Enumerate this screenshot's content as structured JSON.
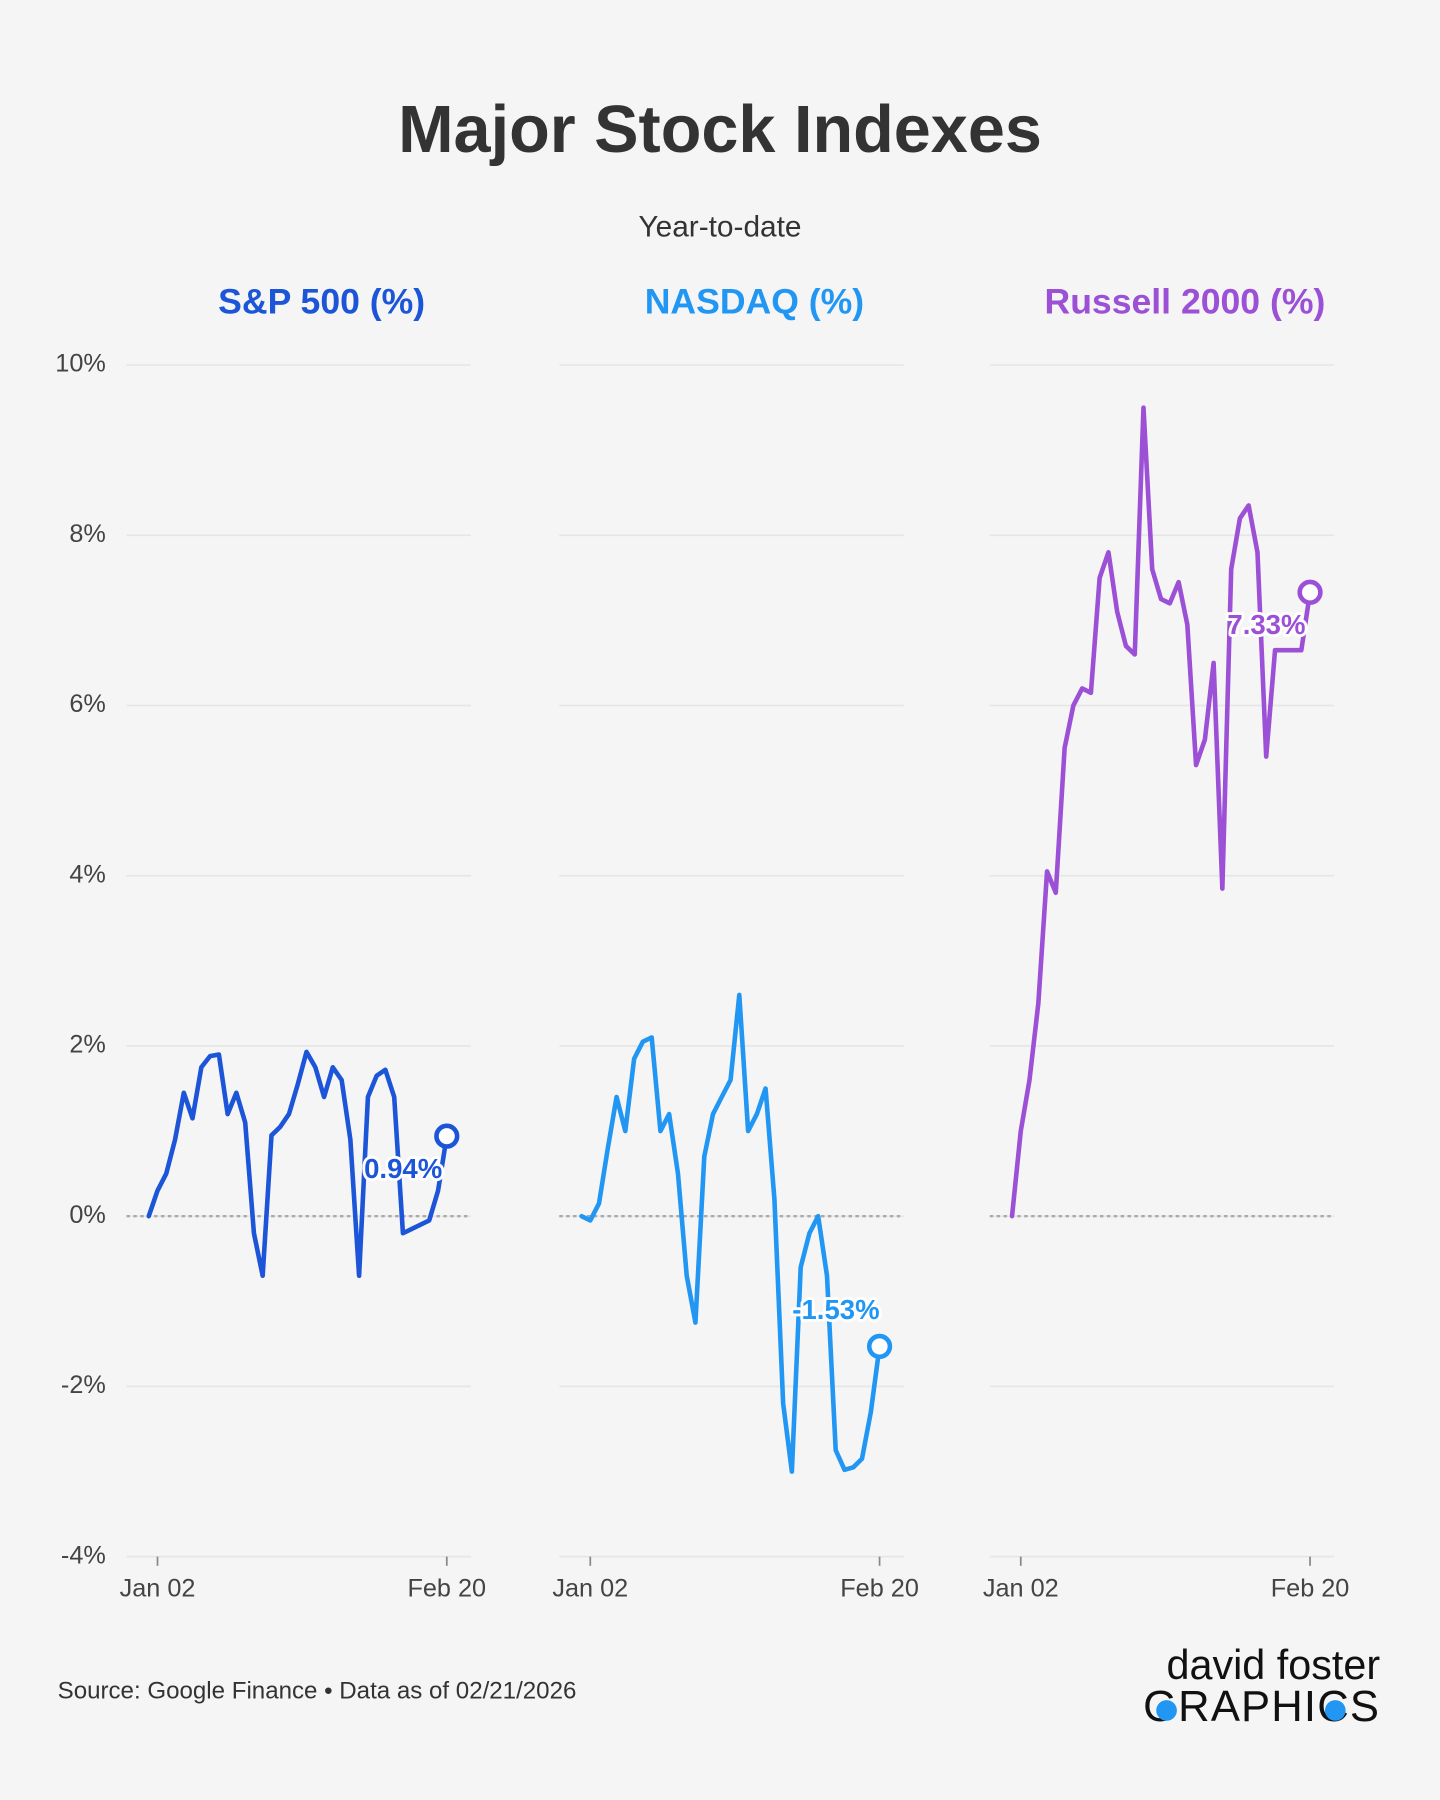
{
  "title": "Major Stock Indexes",
  "subtitle": "Year-to-date",
  "source": "Source: Google Finance • Data as of 02/21/2026",
  "brand": [
    "david foster",
    "GRAPHICS"
  ],
  "chart_data": [
    {
      "type": "line",
      "title": "S&P 500 (%)",
      "color": "#1c55d8",
      "x": [
        "Dec 31",
        "Jan 02",
        "Jan 05",
        "Jan 06",
        "Jan 07",
        "Jan 08",
        "Jan 09",
        "Jan 12",
        "Jan 13",
        "Jan 14",
        "Jan 15",
        "Jan 16",
        "Jan 20",
        "Jan 21",
        "Jan 22",
        "Jan 23",
        "Jan 26",
        "Jan 27",
        "Jan 28",
        "Jan 29",
        "Jan 30",
        "Feb 02",
        "Feb 03",
        "Feb 04",
        "Feb 05",
        "Feb 06",
        "Feb 09",
        "Feb 10",
        "Feb 11",
        "Feb 12",
        "Feb 13",
        "Feb 17",
        "Feb 18",
        "Feb 19",
        "Feb 20"
      ],
      "values": [
        0,
        0.3,
        0.5,
        0.9,
        1.45,
        1.15,
        1.75,
        1.88,
        1.9,
        1.2,
        1.45,
        1.1,
        -0.2,
        -0.7,
        0.95,
        1.05,
        1.2,
        1.55,
        1.93,
        1.75,
        1.4,
        1.75,
        1.6,
        0.9,
        -0.7,
        1.4,
        1.65,
        1.72,
        1.4,
        -0.2,
        -0.15,
        -0.1,
        -0.05,
        0.3,
        0.94
      ],
      "value_labels": [
        null,
        null,
        null,
        null,
        null,
        null,
        null,
        null,
        null,
        null,
        null,
        null,
        null,
        null,
        null,
        null,
        null,
        null,
        null,
        null,
        null,
        null,
        null,
        null,
        null,
        null,
        null,
        null,
        null,
        null,
        null,
        null,
        null,
        null,
        "0.94%"
      ],
      "xticks": [
        "Jan 02",
        "Feb 20"
      ],
      "ylim": [
        -4,
        10
      ],
      "yticks": [
        {
          "value": -4,
          "label": "-4%"
        },
        {
          "value": -2,
          "label": "-2%"
        },
        {
          "value": 0,
          "label": "0%"
        },
        {
          "value": 2,
          "label": "2%"
        },
        {
          "value": 4,
          "label": "4%"
        },
        {
          "value": 6,
          "label": "6%"
        },
        {
          "value": 8,
          "label": "8%"
        },
        {
          "value": 10,
          "label": "10%"
        }
      ],
      "grid": true
    },
    {
      "type": "line",
      "title": "NASDAQ (%)",
      "color": "#2196f3",
      "x": [
        "Dec 31",
        "Jan 02",
        "Jan 05",
        "Jan 06",
        "Jan 07",
        "Jan 08",
        "Jan 09",
        "Jan 12",
        "Jan 13",
        "Jan 14",
        "Jan 15",
        "Jan 16",
        "Jan 20",
        "Jan 21",
        "Jan 22",
        "Jan 23",
        "Jan 26",
        "Jan 27",
        "Jan 28",
        "Jan 29",
        "Jan 30",
        "Feb 02",
        "Feb 03",
        "Feb 04",
        "Feb 05",
        "Feb 06",
        "Feb 09",
        "Feb 10",
        "Feb 11",
        "Feb 12",
        "Feb 13",
        "Feb 17",
        "Feb 18",
        "Feb 19",
        "Feb 20"
      ],
      "values": [
        0,
        -0.05,
        0.15,
        0.8,
        1.4,
        1.0,
        1.85,
        2.05,
        2.1,
        1.0,
        1.2,
        0.5,
        -0.7,
        -1.25,
        0.7,
        1.2,
        1.4,
        1.6,
        2.6,
        1.0,
        1.2,
        1.5,
        0.2,
        -2.2,
        -3.0,
        -0.6,
        -0.2,
        0,
        -0.7,
        -2.75,
        -2.98,
        -2.95,
        -2.85,
        -2.3,
        -1.53
      ],
      "value_labels": [
        null,
        null,
        null,
        null,
        null,
        null,
        null,
        null,
        null,
        null,
        null,
        null,
        null,
        null,
        null,
        null,
        null,
        null,
        null,
        null,
        null,
        null,
        null,
        null,
        null,
        null,
        null,
        null,
        null,
        null,
        null,
        null,
        null,
        null,
        "-1.53%"
      ],
      "xticks": [
        "Jan 02",
        "Feb 20"
      ]
    },
    {
      "type": "line",
      "title": "Russell 2000 (%)",
      "color": "#9b50d6",
      "x": [
        "Dec 31",
        "Jan 02",
        "Jan 05",
        "Jan 06",
        "Jan 07",
        "Jan 08",
        "Jan 09",
        "Jan 12",
        "Jan 13",
        "Jan 14",
        "Jan 15",
        "Jan 16",
        "Jan 20",
        "Jan 21",
        "Jan 22",
        "Jan 23",
        "Jan 26",
        "Jan 27",
        "Jan 28",
        "Jan 29",
        "Jan 30",
        "Feb 02",
        "Feb 03",
        "Feb 04",
        "Feb 05",
        "Feb 06",
        "Feb 09",
        "Feb 10",
        "Feb 11",
        "Feb 12",
        "Feb 13",
        "Feb 17",
        "Feb 18",
        "Feb 19",
        "Feb 20"
      ],
      "values": [
        0,
        1.0,
        1.6,
        2.5,
        4.05,
        3.8,
        5.5,
        6.0,
        6.2,
        6.15,
        7.5,
        7.8,
        7.1,
        6.7,
        6.6,
        9.5,
        7.6,
        7.25,
        7.2,
        7.45,
        6.95,
        5.3,
        5.6,
        6.5,
        3.85,
        7.6,
        8.2,
        8.35,
        7.8,
        5.4,
        6.65,
        6.65,
        6.65,
        6.65,
        7.33
      ],
      "value_labels": [
        null,
        null,
        null,
        null,
        null,
        null,
        null,
        null,
        null,
        null,
        null,
        null,
        null,
        null,
        null,
        null,
        null,
        null,
        null,
        null,
        null,
        null,
        null,
        null,
        null,
        null,
        null,
        null,
        null,
        null,
        null,
        null,
        null,
        null,
        "7.33%"
      ],
      "xticks": [
        "Jan 02",
        "Feb 20"
      ]
    }
  ]
}
